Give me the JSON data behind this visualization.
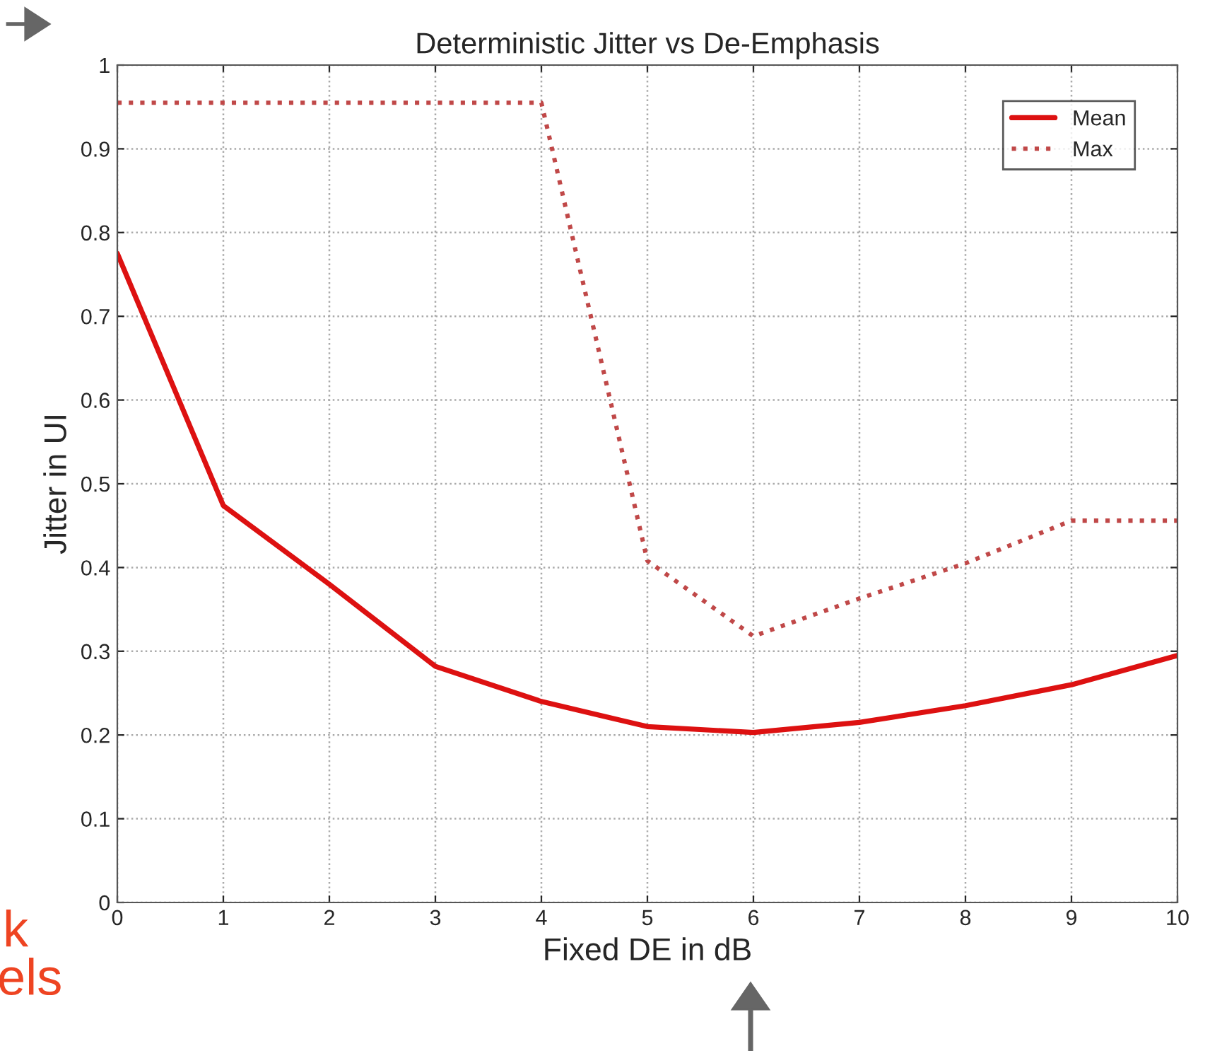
{
  "chart_data": {
    "type": "line",
    "title": "Deterministic Jitter vs De-Emphasis",
    "xlabel": "Fixed DE in dB",
    "ylabel": "Jitter in UI",
    "x": [
      0,
      1,
      2,
      3,
      4,
      5,
      6,
      7,
      8,
      9,
      10
    ],
    "series": [
      {
        "name": "Mean",
        "color": "#dd1111",
        "line_style": "solid",
        "values": [
          0.775,
          0.474,
          0.38,
          0.282,
          0.24,
          0.21,
          0.203,
          0.215,
          0.235,
          0.26,
          0.295
        ]
      },
      {
        "name": "Max",
        "color": "#c04848",
        "line_style": "dotted",
        "values": [
          0.955,
          0.955,
          0.955,
          0.955,
          0.955,
          0.408,
          0.318,
          0.363,
          0.405,
          0.456,
          0.456
        ]
      }
    ],
    "xlim": [
      0,
      10
    ],
    "ylim": [
      0,
      1
    ],
    "xticks": [
      0,
      1,
      2,
      3,
      4,
      5,
      6,
      7,
      8,
      9,
      10
    ],
    "yticks": [
      0,
      0.1,
      0.2,
      0.3,
      0.4,
      0.5,
      0.6,
      0.7,
      0.8,
      0.9,
      1
    ],
    "grid": true,
    "legend": "top right",
    "annotations": [
      "k",
      "els"
    ]
  }
}
